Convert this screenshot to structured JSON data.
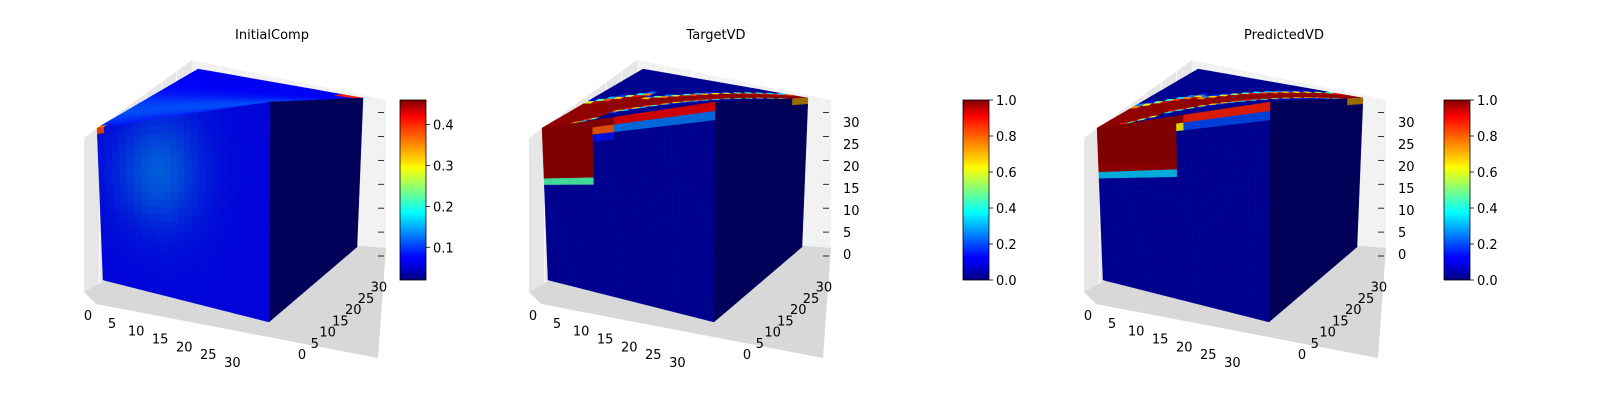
{
  "colors": {
    "pane_light": "#f2f2f2",
    "pane_mid": "#e6e6e6",
    "pane_dark": "#d8d8d8",
    "grid": "#ffffff",
    "colormap": "jet"
  },
  "chart_data": [
    {
      "type": "voxel-3d",
      "title": "InitialComp",
      "xlim": [
        0,
        32
      ],
      "ylim": [
        0,
        32
      ],
      "zlim": [
        0,
        32
      ],
      "x_ticks": [
        0,
        5,
        10,
        15,
        20,
        25,
        30
      ],
      "y_ticks": [
        0,
        5,
        10,
        15,
        20,
        25,
        30
      ],
      "z_ticks": [],
      "colorbar": {
        "min": 0.02,
        "max": 0.46,
        "ticks": [
          "0.1",
          "0.2",
          "0.3",
          "0.4"
        ],
        "tick_values": [
          0.1,
          0.2,
          0.3,
          0.4
        ]
      },
      "field": "initial"
    },
    {
      "type": "voxel-3d",
      "title": "TargetVD",
      "xlim": [
        0,
        32
      ],
      "ylim": [
        0,
        32
      ],
      "zlim": [
        0,
        32
      ],
      "x_ticks": [
        0,
        5,
        10,
        15,
        20,
        25,
        30
      ],
      "y_ticks": [
        0,
        5,
        10,
        15,
        20,
        25,
        30
      ],
      "z_ticks": [
        0,
        5,
        10,
        15,
        20,
        25,
        30
      ],
      "colorbar": {
        "min": 0.0,
        "max": 1.0,
        "ticks": [
          "0.0",
          "0.2",
          "0.4",
          "0.6",
          "0.8",
          "1.0"
        ],
        "tick_values": [
          0.0,
          0.2,
          0.4,
          0.6,
          0.8,
          1.0
        ]
      },
      "field": "target"
    },
    {
      "type": "voxel-3d",
      "title": "PredictedVD",
      "xlim": [
        0,
        32
      ],
      "ylim": [
        0,
        32
      ],
      "zlim": [
        0,
        32
      ],
      "x_ticks": [
        0,
        5,
        10,
        15,
        20,
        25,
        30
      ],
      "y_ticks": [
        0,
        5,
        10,
        15,
        20,
        25,
        30
      ],
      "z_ticks": [
        0,
        5,
        10,
        15,
        20,
        25,
        30
      ],
      "colorbar": {
        "min": 0.0,
        "max": 1.0,
        "ticks": [
          "0.0",
          "0.2",
          "0.4",
          "0.6",
          "0.8",
          "1.0"
        ],
        "tick_values": [
          0.0,
          0.2,
          0.4,
          0.6,
          0.8,
          1.0
        ]
      },
      "field": "predicted"
    }
  ]
}
